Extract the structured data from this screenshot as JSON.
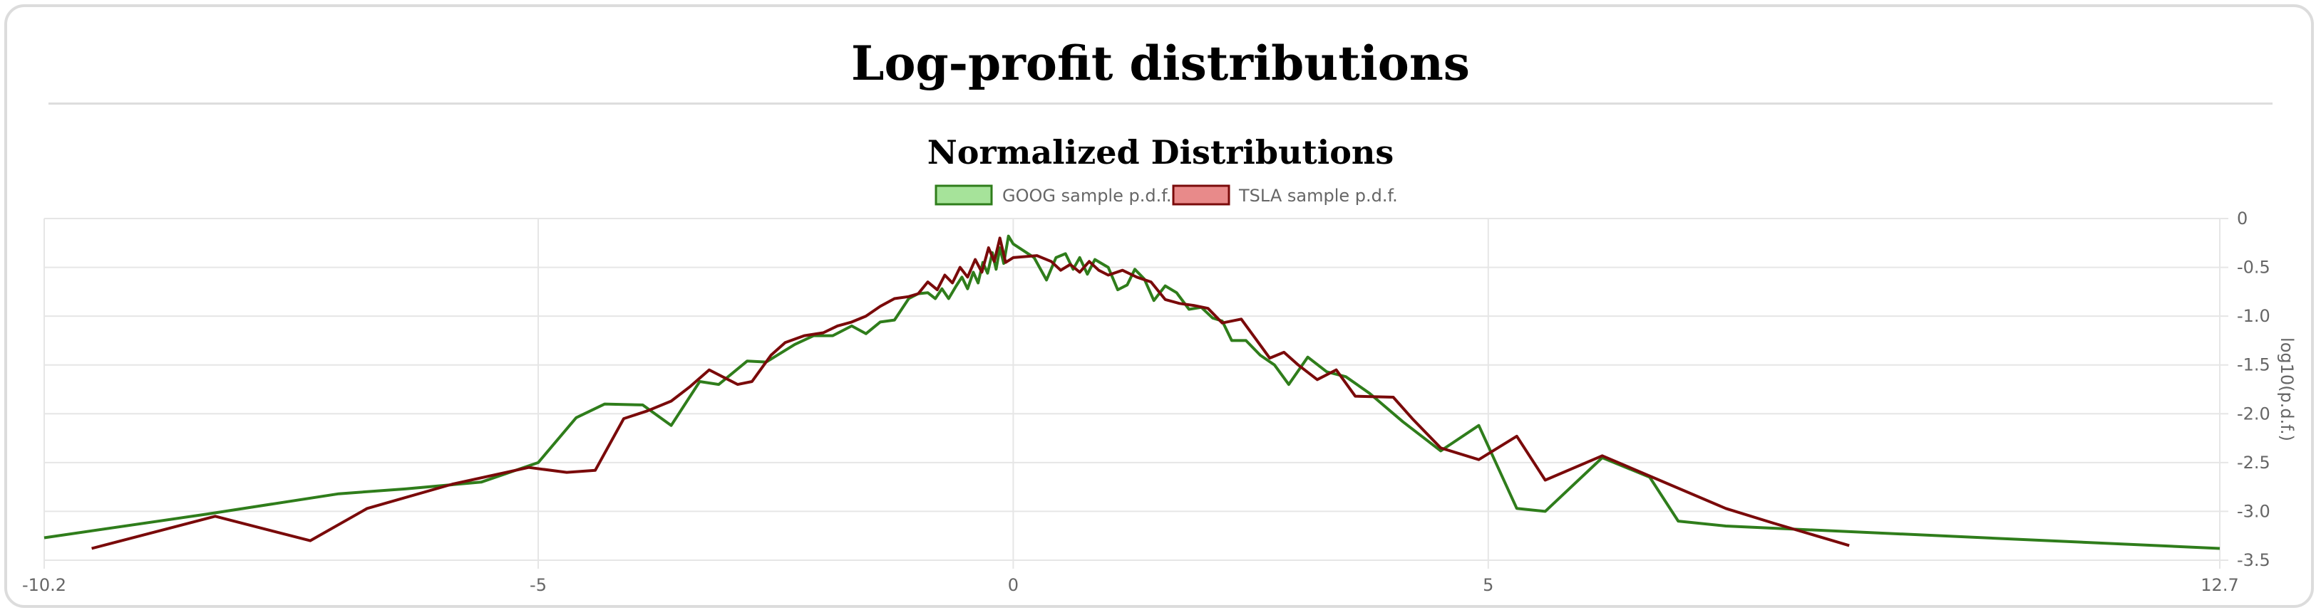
{
  "page": {
    "title": "Log-profit distributions"
  },
  "colors": {
    "goog_line": "#2f7d1b",
    "goog_fill": "#a6e39a",
    "tsla_line": "#7a0a0a",
    "tsla_fill": "#e88a8a",
    "grid": "#e6e6e6",
    "tick_text": "#666666"
  },
  "chart_data": {
    "type": "line",
    "title": "Normalized Distributions",
    "xlabel": "",
    "ylabel": "log10(p.d.f.)",
    "xlim": [
      -10.2,
      12.7
    ],
    "ylim": [
      -3.5,
      0
    ],
    "x_ticks": [
      -10.2,
      -5,
      0,
      5,
      12.7
    ],
    "y_ticks": [
      0,
      -0.5,
      -1.0,
      -1.5,
      -2.0,
      -2.5,
      -3.0,
      -3.5
    ],
    "y_tick_labels": [
      "0",
      "-0.5",
      "-1.0",
      "-1.5",
      "-2.0",
      "-2.5",
      "-3.0",
      "-3.5"
    ],
    "grid": true,
    "legend_position": "top-center",
    "y_axis_side": "right",
    "series": [
      {
        "name": "GOOG sample p.d.f.",
        "points": [
          [
            -10.2,
            -3.27
          ],
          [
            -8.5,
            -3.03
          ],
          [
            -7.1,
            -2.82
          ],
          [
            -6.4,
            -2.77
          ],
          [
            -5.6,
            -2.7
          ],
          [
            -5.0,
            -2.5
          ],
          [
            -4.6,
            -2.04
          ],
          [
            -4.3,
            -1.9
          ],
          [
            -3.9,
            -1.91
          ],
          [
            -3.6,
            -2.12
          ],
          [
            -3.3,
            -1.67
          ],
          [
            -3.1,
            -1.7
          ],
          [
            -2.8,
            -1.46
          ],
          [
            -2.6,
            -1.47
          ],
          [
            -2.3,
            -1.29
          ],
          [
            -2.1,
            -1.2
          ],
          [
            -1.9,
            -1.2
          ],
          [
            -1.7,
            -1.1
          ],
          [
            -1.55,
            -1.18
          ],
          [
            -1.4,
            -1.06
          ],
          [
            -1.25,
            -1.04
          ],
          [
            -1.1,
            -0.82
          ],
          [
            -1.0,
            -0.77
          ],
          [
            -0.9,
            -0.76
          ],
          [
            -0.82,
            -0.82
          ],
          [
            -0.75,
            -0.72
          ],
          [
            -0.68,
            -0.82
          ],
          [
            -0.6,
            -0.69
          ],
          [
            -0.54,
            -0.6
          ],
          [
            -0.48,
            -0.72
          ],
          [
            -0.42,
            -0.55
          ],
          [
            -0.37,
            -0.66
          ],
          [
            -0.32,
            -0.45
          ],
          [
            -0.27,
            -0.56
          ],
          [
            -0.22,
            -0.35
          ],
          [
            -0.18,
            -0.52
          ],
          [
            -0.14,
            -0.3
          ],
          [
            -0.1,
            -0.46
          ],
          [
            -0.05,
            -0.18
          ],
          [
            0.0,
            -0.26
          ],
          [
            0.22,
            -0.4
          ],
          [
            0.35,
            -0.63
          ],
          [
            0.45,
            -0.4
          ],
          [
            0.55,
            -0.36
          ],
          [
            0.63,
            -0.52
          ],
          [
            0.7,
            -0.4
          ],
          [
            0.78,
            -0.57
          ],
          [
            0.86,
            -0.42
          ],
          [
            1.0,
            -0.5
          ],
          [
            1.1,
            -0.73
          ],
          [
            1.2,
            -0.68
          ],
          [
            1.28,
            -0.52
          ],
          [
            1.38,
            -0.62
          ],
          [
            1.48,
            -0.84
          ],
          [
            1.6,
            -0.69
          ],
          [
            1.72,
            -0.76
          ],
          [
            1.85,
            -0.93
          ],
          [
            1.98,
            -0.91
          ],
          [
            2.1,
            -1.02
          ],
          [
            2.2,
            -1.05
          ],
          [
            2.3,
            -1.25
          ],
          [
            2.45,
            -1.25
          ],
          [
            2.6,
            -1.4
          ],
          [
            2.75,
            -1.5
          ],
          [
            2.9,
            -1.7
          ],
          [
            3.1,
            -1.42
          ],
          [
            3.3,
            -1.57
          ],
          [
            3.5,
            -1.62
          ],
          [
            3.75,
            -1.79
          ],
          [
            4.1,
            -2.08
          ],
          [
            4.5,
            -2.38
          ],
          [
            4.9,
            -2.12
          ],
          [
            5.3,
            -2.97
          ],
          [
            5.6,
            -3.0
          ],
          [
            6.2,
            -2.45
          ],
          [
            6.7,
            -2.65
          ],
          [
            7.0,
            -3.1
          ],
          [
            7.5,
            -3.15
          ],
          [
            12.7,
            -3.38
          ]
        ]
      },
      {
        "name": "TSLA sample p.d.f.",
        "points": [
          [
            -9.7,
            -3.38
          ],
          [
            -8.4,
            -3.05
          ],
          [
            -7.4,
            -3.3
          ],
          [
            -6.8,
            -2.97
          ],
          [
            -5.9,
            -2.72
          ],
          [
            -5.1,
            -2.55
          ],
          [
            -4.7,
            -2.6
          ],
          [
            -4.4,
            -2.58
          ],
          [
            -4.1,
            -2.05
          ],
          [
            -3.85,
            -1.97
          ],
          [
            -3.6,
            -1.87
          ],
          [
            -3.4,
            -1.72
          ],
          [
            -3.2,
            -1.55
          ],
          [
            -3.0,
            -1.65
          ],
          [
            -2.9,
            -1.7
          ],
          [
            -2.75,
            -1.67
          ],
          [
            -2.55,
            -1.4
          ],
          [
            -2.4,
            -1.27
          ],
          [
            -2.2,
            -1.2
          ],
          [
            -2.0,
            -1.17
          ],
          [
            -1.85,
            -1.1
          ],
          [
            -1.7,
            -1.06
          ],
          [
            -1.55,
            -1.0
          ],
          [
            -1.4,
            -0.9
          ],
          [
            -1.25,
            -0.82
          ],
          [
            -1.1,
            -0.8
          ],
          [
            -1.0,
            -0.77
          ],
          [
            -0.9,
            -0.65
          ],
          [
            -0.8,
            -0.73
          ],
          [
            -0.72,
            -0.58
          ],
          [
            -0.64,
            -0.66
          ],
          [
            -0.56,
            -0.5
          ],
          [
            -0.48,
            -0.6
          ],
          [
            -0.4,
            -0.42
          ],
          [
            -0.33,
            -0.55
          ],
          [
            -0.26,
            -0.3
          ],
          [
            -0.2,
            -0.44
          ],
          [
            -0.14,
            -0.2
          ],
          [
            -0.08,
            -0.45
          ],
          [
            0.0,
            -0.4
          ],
          [
            0.25,
            -0.38
          ],
          [
            0.4,
            -0.44
          ],
          [
            0.5,
            -0.53
          ],
          [
            0.6,
            -0.47
          ],
          [
            0.7,
            -0.55
          ],
          [
            0.8,
            -0.44
          ],
          [
            0.9,
            -0.53
          ],
          [
            1.0,
            -0.58
          ],
          [
            1.15,
            -0.53
          ],
          [
            1.3,
            -0.6
          ],
          [
            1.45,
            -0.65
          ],
          [
            1.6,
            -0.83
          ],
          [
            1.75,
            -0.87
          ],
          [
            1.9,
            -0.89
          ],
          [
            2.05,
            -0.92
          ],
          [
            2.2,
            -1.07
          ],
          [
            2.4,
            -1.03
          ],
          [
            2.55,
            -1.23
          ],
          [
            2.7,
            -1.43
          ],
          [
            2.85,
            -1.37
          ],
          [
            3.0,
            -1.5
          ],
          [
            3.2,
            -1.65
          ],
          [
            3.4,
            -1.55
          ],
          [
            3.6,
            -1.82
          ],
          [
            4.0,
            -1.83
          ],
          [
            4.2,
            -2.05
          ],
          [
            4.5,
            -2.35
          ],
          [
            4.9,
            -2.47
          ],
          [
            5.3,
            -2.23
          ],
          [
            5.6,
            -2.68
          ],
          [
            6.2,
            -2.43
          ],
          [
            6.8,
            -2.68
          ],
          [
            7.5,
            -2.97
          ],
          [
            8.0,
            -3.12
          ],
          [
            8.8,
            -3.35
          ]
        ]
      }
    ]
  }
}
